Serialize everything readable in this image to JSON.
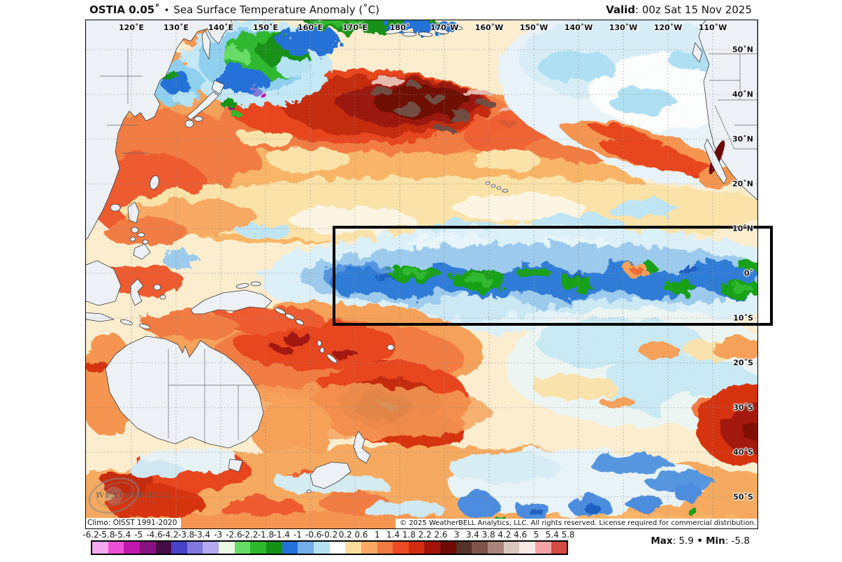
{
  "header": {
    "product": "OSTIA 0.05˚",
    "separator": "•",
    "title": "Sea Surface Temperature Anomaly (˚C)",
    "valid_label": "Valid",
    "valid_value": ": 00z Sat 15 Nov 2025"
  },
  "map": {
    "lon_labels": [
      "120˚E",
      "130˚E",
      "140˚E",
      "150˚E",
      "160˚E",
      "170˚E",
      "180˚",
      "170˚W",
      "160˚W",
      "150˚W",
      "140˚W",
      "130˚W",
      "120˚W",
      "110˚W"
    ],
    "lat_labels": [
      "50˚N",
      "40˚N",
      "30˚N",
      "20˚N",
      "10˚N",
      "0˚",
      "10˚S",
      "20˚S",
      "30˚S",
      "40˚S",
      "50˚S"
    ],
    "climo_note": "Climo: OISST 1991-2020",
    "copyright": "© 2025 WeatherBELL Analytics, LLC. All rights reserved. License required for commercial distribution.",
    "watermark": {
      "name": "WEATHERBELL",
      "sub": "ANALYTICS LLC"
    }
  },
  "colorbar": {
    "tick_labels": [
      "-6.2",
      "-5.8",
      "-5.4",
      "-5",
      "-4.6",
      "-4.2",
      "-3.8",
      "-3.4",
      "-3",
      "-2.6",
      "-2.2",
      "-1.8",
      "-1.4",
      "-1",
      "-0.6",
      "-0.2",
      "0.2",
      "0.6",
      "1",
      "1.4",
      "1.8",
      "2.2",
      "2.6",
      "3",
      "3.4",
      "3.8",
      "4.2",
      "4.6",
      "5",
      "5.4",
      "5.8"
    ],
    "colors": [
      "#F5A9EE",
      "#EE4FD8",
      "#C018AC",
      "#8A1280",
      "#470B47",
      "#4742C8",
      "#8078DC",
      "#B4AAF0",
      "#E9F9E4",
      "#66DD66",
      "#2DB82D",
      "#149114",
      "#2470D8",
      "#73AEE8",
      "#B4E4F4",
      "#FFFFFF",
      "#FBDE9B",
      "#F9A963",
      "#F27B43",
      "#EE4A25",
      "#D42B10",
      "#A31208",
      "#6E0A03",
      "#553229",
      "#7D5449",
      "#A8847A",
      "#D9C6BC",
      "#F7E8E4",
      "#F5A3A8",
      "#D64A44"
    ]
  },
  "stats": {
    "max_label": "Max",
    "max_value": ": 5.9",
    "separator": "•",
    "min_label": "Min",
    "min_value": ": -5.8"
  },
  "chart_data": {
    "type": "heatmap",
    "title": "OSTIA 0.05˚ Sea Surface Temperature Anomaly (˚C)",
    "valid": "00z Sat 15 Nov 2025",
    "climatology": "OISST 1991-2020",
    "region": "Pacific Ocean",
    "lon_tick_labels": [
      "120˚E",
      "130˚E",
      "140˚E",
      "150˚E",
      "160˚E",
      "170˚E",
      "180˚",
      "170˚W",
      "160˚W",
      "150˚W",
      "140˚W",
      "130˚W",
      "120˚W",
      "110˚W"
    ],
    "lat_tick_labels": [
      "50˚N",
      "40˚N",
      "30˚N",
      "20˚N",
      "10˚N",
      "0˚",
      "10˚S",
      "20˚S",
      "30˚S",
      "40˚S",
      "50˚S"
    ],
    "colorbar_ticks": [
      -6.2,
      -5.8,
      -5.4,
      -5,
      -4.6,
      -4.2,
      -3.8,
      -3.4,
      -3,
      -2.6,
      -2.2,
      -1.8,
      -1.4,
      -1,
      -0.6,
      -0.2,
      0.2,
      0.6,
      1,
      1.4,
      1.8,
      2.2,
      2.6,
      3,
      3.4,
      3.8,
      4.2,
      4.6,
      5,
      5.4,
      5.8
    ],
    "colorbar_colors": [
      "#F5A9EE",
      "#EE4FD8",
      "#C018AC",
      "#8A1280",
      "#470B47",
      "#4742C8",
      "#8078DC",
      "#B4AAF0",
      "#E9F9E4",
      "#66DD66",
      "#2DB82D",
      "#149114",
      "#2470D8",
      "#73AEE8",
      "#B4E4F4",
      "#FFFFFF",
      "#FBDE9B",
      "#F9A963",
      "#F27B43",
      "#EE4A25",
      "#D42B10",
      "#A31208",
      "#6E0A03",
      "#553229",
      "#7D5449",
      "#A8847A",
      "#D9C6BC",
      "#F7E8E4",
      "#F5A3A8",
      "#D64A44"
    ],
    "max": 5.9,
    "min": -5.8,
    "annotations": [
      {
        "type": "box",
        "label": "equatorial Pacific highlight box",
        "lat_span": "10˚N to 10˚S",
        "lon_span": "165˚E to east map edge"
      }
    ],
    "key_features": [
      "intense warm anomaly (+3 to +5˚C) in central North Pacific near 35-40˚N, 165˚E-170˚W",
      "cold La Niña-type band (-1 to -2.6˚C) along the equator from 165˚E to the American coast with tropical instability waves",
      "cool pool (-1 to -2˚C) northeast of Japan / Kuril region",
      "broad warm anomalies across the southwest Pacific and north of New Zealand",
      "warm blob in far southeast Pacific near 30-40˚S, 100-110˚W",
      "near-normal to slightly cool northeast and southeast tropical Pacific"
    ]
  }
}
